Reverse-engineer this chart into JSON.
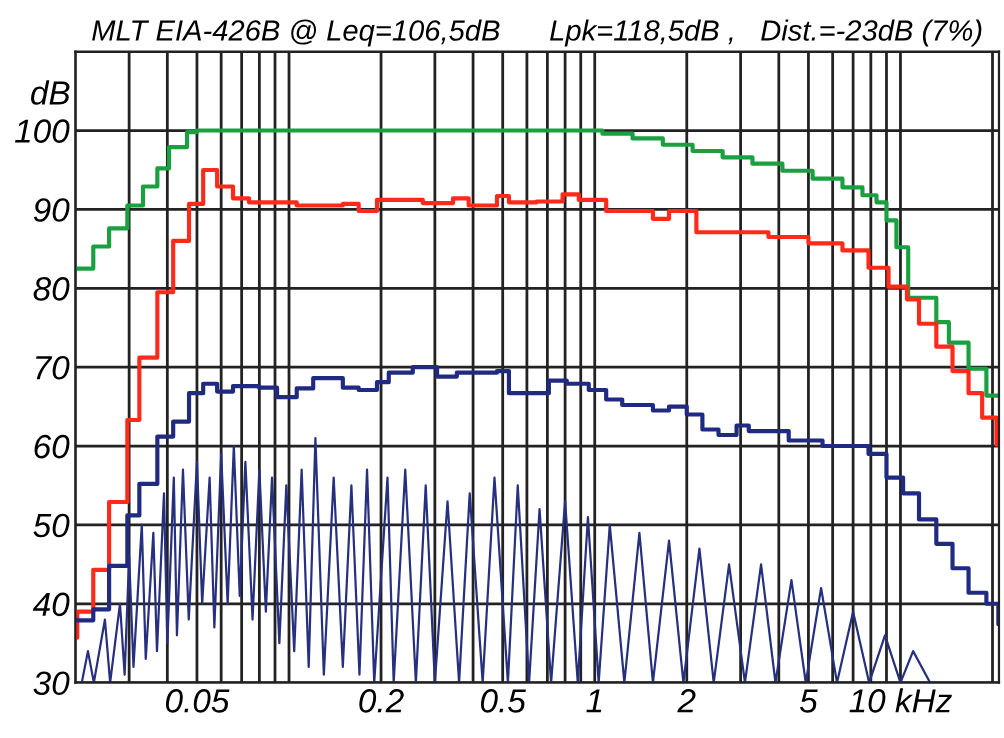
{
  "chart_data": {
    "type": "step",
    "title": "MLT EIA-426B @ Leq=106,5dB      Lpk=118,5dB ,   Dist.=-23dB (7%)",
    "ylabel": "dB",
    "log": "x",
    "grid": true,
    "xlim": [
      0.02,
      21
    ],
    "ylim": [
      30,
      110
    ],
    "xticks": [
      {
        "value": 0.02,
        "label": null
      },
      {
        "value": 0.03,
        "label": null
      },
      {
        "value": 0.04,
        "label": null
      },
      0.05,
      {
        "value": 0.06,
        "label": null
      },
      {
        "value": 0.07,
        "label": null
      },
      {
        "value": 0.08,
        "label": null
      },
      {
        "value": 0.09,
        "label": null
      },
      {
        "value": 0.1,
        "label": null
      },
      0.2,
      {
        "value": 0.3,
        "label": null
      },
      {
        "value": 0.4,
        "label": null
      },
      0.5,
      {
        "value": 0.6,
        "label": null
      },
      {
        "value": 0.7,
        "label": null
      },
      {
        "value": 0.8,
        "label": null
      },
      {
        "value": 0.9,
        "label": null
      },
      1,
      2,
      {
        "value": 3,
        "label": null
      },
      {
        "value": 4,
        "label": null
      },
      5,
      {
        "value": 6,
        "label": null
      },
      {
        "value": 7,
        "label": null
      },
      {
        "value": 8,
        "label": null
      },
      {
        "value": 9,
        "label": null
      },
      {
        "value": 10,
        "label": "10 kHz"
      },
      {
        "value": 20,
        "label": null
      }
    ],
    "yticks": [
      30,
      40,
      50,
      60,
      70,
      80,
      90,
      100,
      {
        "value": 110,
        "label": null
      }
    ],
    "series": [
      {
        "type": "line",
        "color": "#27307f",
        "x": [
          0.021,
          0.022,
          0.023,
          0.025,
          0.026,
          0.028,
          0.029,
          0.03,
          0.031,
          0.033,
          0.034,
          0.036,
          0.037,
          0.039,
          0.04,
          0.042,
          0.043,
          0.045,
          0.047,
          0.05,
          0.052,
          0.055,
          0.057,
          0.06,
          0.063,
          0.066,
          0.069,
          0.072,
          0.076,
          0.08,
          0.084,
          0.088,
          0.093,
          0.098,
          0.104,
          0.11,
          0.116,
          0.122,
          0.13,
          0.14,
          0.15,
          0.16,
          0.17,
          0.18,
          0.19,
          0.21,
          0.22,
          0.24,
          0.26,
          0.28,
          0.3,
          0.33,
          0.36,
          0.39,
          0.43,
          0.47,
          0.52,
          0.56,
          0.61,
          0.66,
          0.72,
          0.8,
          0.88,
          0.95,
          1.03,
          1.12,
          1.25,
          1.4,
          1.55,
          1.75,
          1.95,
          2.2,
          2.45,
          2.75,
          3.1,
          3.5,
          3.9,
          4.4,
          4.9,
          5.5,
          6.2,
          7.0,
          7.9,
          8.9,
          10,
          11,
          12.5
        ],
        "values": [
          30,
          34,
          30,
          38,
          30,
          40,
          31,
          46,
          32,
          50,
          33,
          49,
          34,
          54,
          35,
          56,
          36,
          57,
          38,
          58,
          40,
          56,
          37,
          59,
          40,
          60,
          41,
          58,
          38,
          57,
          39,
          56,
          35,
          55,
          34,
          57,
          32,
          61,
          31,
          56,
          32,
          55,
          31,
          57,
          30,
          56,
          30,
          57,
          30,
          55,
          30,
          53,
          30,
          54,
          30,
          56,
          30,
          55,
          30,
          52,
          30,
          53,
          30,
          51,
          30,
          50,
          30,
          49,
          30,
          48,
          30,
          47,
          30,
          45,
          30,
          45,
          30,
          43,
          30,
          42,
          30,
          39,
          30,
          36,
          30,
          34,
          30
        ]
      },
      {
        "color": "#1aa040",
        "x": [
          0.02,
          0.0229,
          0.0258,
          0.0296,
          0.0333,
          0.0371,
          0.0405,
          0.0464,
          0.05,
          1.06,
          1.33,
          1.67,
          2.09,
          2.62,
          3.28,
          4.11,
          5.16,
          6.46,
          7.51,
          8.35,
          9.0,
          9.7,
          10.6,
          13.1,
          14.4,
          16.7,
          19.1,
          21
        ],
        "values": [
          82.5,
          85.3,
          87.6,
          90.5,
          92.9,
          95.2,
          97.9,
          99.8,
          100,
          99.6,
          99.0,
          98.2,
          97.4,
          96.6,
          95.8,
          94.9,
          93.9,
          92.8,
          91.8,
          90.9,
          88.6,
          85.2,
          78.8,
          75.7,
          73.1,
          69.8,
          66.4,
          66.4
        ]
      },
      {
        "color": "#ff2a1a",
        "x": [
          0.02,
          0.0203,
          0.0229,
          0.0258,
          0.0296,
          0.0324,
          0.0371,
          0.0418,
          0.0471,
          0.0524,
          0.0582,
          0.0656,
          0.074,
          0.106,
          0.15,
          0.169,
          0.194,
          0.274,
          0.344,
          0.387,
          0.479,
          0.524,
          0.646,
          0.785,
          0.887,
          1.09,
          1.55,
          1.75,
          2.15,
          3.7,
          5.0,
          6.46,
          7.86,
          9.14,
          10.5,
          11.5,
          13.1,
          14.8,
          16.7,
          18.5,
          20.6,
          21
        ],
        "values": [
          35.7,
          39.0,
          44.3,
          52.9,
          63.3,
          71.2,
          79.5,
          86.0,
          90.7,
          95.0,
          92.9,
          91.4,
          90.9,
          90.5,
          90.7,
          89.8,
          91.2,
          90.8,
          91.4,
          90.5,
          91.7,
          90.9,
          91.0,
          91.9,
          91.2,
          89.8,
          88.8,
          89.8,
          87.1,
          86.5,
          85.7,
          84.8,
          82.6,
          80.2,
          78.6,
          75.5,
          72.6,
          69.5,
          66.7,
          63.6,
          60.2,
          60.2
        ]
      },
      {
        "color": "#1f2a80",
        "x": [
          0.0203,
          0.0229,
          0.0258,
          0.0296,
          0.0324,
          0.0371,
          0.0418,
          0.0471,
          0.0524,
          0.0582,
          0.0656,
          0.0798,
          0.0914,
          0.106,
          0.12,
          0.15,
          0.169,
          0.194,
          0.212,
          0.254,
          0.305,
          0.354,
          0.479,
          0.524,
          0.708,
          0.81,
          0.956,
          1.09,
          1.23,
          1.55,
          1.75,
          2.0,
          2.25,
          2.54,
          2.91,
          3.19,
          4.31,
          5.56,
          7.86,
          9.0,
          10.2,
          11.5,
          13.1,
          14.8,
          16.7,
          19.1,
          20.9,
          21
        ],
        "values": [
          37.9,
          39.3,
          44.8,
          51.2,
          55.2,
          61.2,
          63.1,
          66.7,
          67.9,
          66.9,
          67.6,
          67.4,
          66.2,
          67.3,
          68.6,
          67.4,
          67.1,
          68.1,
          69.3,
          70.0,
          68.8,
          69.3,
          69.5,
          66.7,
          68.3,
          67.9,
          67.1,
          65.9,
          65.2,
          64.5,
          65.0,
          64.0,
          62.1,
          61.4,
          62.6,
          61.9,
          60.7,
          60.0,
          59.0,
          56.0,
          54.0,
          50.7,
          47.6,
          44.5,
          41.4,
          40.0,
          37.4,
          37.4
        ]
      }
    ]
  }
}
